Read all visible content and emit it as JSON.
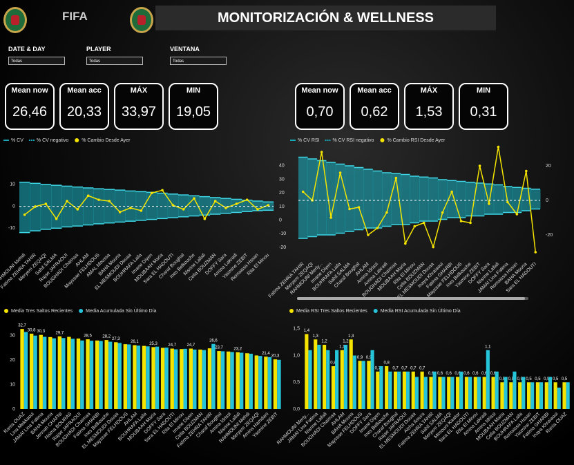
{
  "header": {
    "logo_text": "FIFA",
    "title": "MONITORIZACIÓN & WELLNESS"
  },
  "filters": [
    {
      "label": "DATE & DAY",
      "value": "Todas"
    },
    {
      "label": "PLAYER",
      "value": "Todas"
    },
    {
      "label": "VENTANA",
      "value": "Todas"
    }
  ],
  "kpis": {
    "left": [
      {
        "label": "Mean now",
        "value": "26,46"
      },
      {
        "label": "Mean acc",
        "value": "20,33"
      },
      {
        "label": "MÁX",
        "value": "33,97"
      },
      {
        "label": "MIN",
        "value": "19,05"
      }
    ],
    "right": [
      {
        "label": "Mean now",
        "value": "0,70"
      },
      {
        "label": "Mean acc",
        "value": "0,62"
      },
      {
        "label": "MÁX",
        "value": "1,53"
      },
      {
        "label": "MIN",
        "value": "0,31"
      }
    ]
  },
  "chart_data": [
    {
      "type": "area",
      "categories": [
        "RAHMOUNI Mehdi",
        "Fatima ZEHRA TAHIR",
        "Meryem ZEQAQI",
        "Sahil SALMA",
        "Rajae JAFRAOUI",
        "BOUGHADI Chaimaa",
        "AHLAM",
        "Mayssae FELHDOUS",
        "AMAL Moussa",
        "BAHA Mouna",
        "EL MESMOUDI Douaa",
        "BOUHRAFA Laila",
        "Imane Diyen",
        "MOUBAAH Maria",
        "Sara EL HADOUTI",
        "Charaf Boughal",
        "Ines Belkouche",
        "Nisrine Lallali",
        "Celia BOUZMAN",
        "DOFFY Sara",
        "Amina Lakradi",
        "Yasmine ZEBIT",
        "Romaissa Hssan",
        "Rita El Minou"
      ],
      "series": [
        {
          "name": "% CV",
          "type": "area",
          "color": "#1aa9b8",
          "values": [
            11,
            10.5,
            10,
            9.6,
            9.2,
            8.8,
            8.4,
            8,
            7.7,
            7.4,
            7,
            6.7,
            6.4,
            6,
            5.6,
            5.2,
            4.8,
            4.4,
            4,
            3.6,
            3.2,
            2.8,
            2.4,
            2
          ]
        },
        {
          "name": "% CV negativo",
          "type": "area",
          "color": "#1aa9b8",
          "values": [
            -12,
            -11.2,
            -10.5,
            -10,
            -9.4,
            -9,
            -8.5,
            -8,
            -7.6,
            -7.2,
            -6.8,
            -6.4,
            -6,
            -5.6,
            -5.2,
            -4.8,
            -4.4,
            -4,
            -3.6,
            -3.2,
            -2.8,
            -2.4,
            -2,
            -1.8
          ]
        },
        {
          "name": "% Cambio Desde Ayer",
          "type": "line",
          "axis": "y2",
          "color": "#f5e400",
          "values": [
            4,
            10,
            12,
            1,
            14,
            8,
            18,
            15,
            14,
            6,
            9,
            7,
            20,
            22,
            11,
            8,
            16,
            1,
            14,
            9,
            12,
            15,
            8,
            11
          ]
        }
      ],
      "ylim": [
        -20,
        21
      ],
      "yticks": [
        10,
        0,
        -10
      ],
      "y2lim": [
        -22,
        44
      ],
      "y2ticks": [
        40,
        30,
        20,
        10,
        0,
        -10,
        -20
      ]
    },
    {
      "type": "area",
      "y_axis_position": "right",
      "categories": [
        "Fatima ZEHRA TAHIR",
        "Meryem ZEQAQI",
        "RAHMOUNI Meriy...",
        "Imane Diyen",
        "BOUHRAFA Laila",
        "Sahil SALMA",
        "Charaf Boughal",
        "AHLAM",
        "Amina Idrissi",
        "Amina Lakradi",
        "BOUGHADI Chaimaa",
        "MOUBAAH Maria",
        "Rita El Minou",
        "Celia BOUZMAN",
        "EL MESMOUDI Douaa",
        "Inaya Khraiaoui",
        "Fatima GHARBI",
        "Mayssae FELHDOUS",
        "Ines Belkouche",
        "Yasmine ZEBIT",
        "DOFFY Sara",
        "Nisrine Lallali",
        "JAMAI Lina Fatima",
        "Romaissa Hssan",
        "BAHA Mouna",
        "Sara EL HADOUTI"
      ],
      "series": [
        {
          "name": "% CV RSI",
          "type": "area",
          "color": "#1aa9b8",
          "values": [
            25,
            24,
            23,
            22,
            21,
            20,
            19,
            18,
            17,
            16,
            15.5,
            15,
            14,
            13.5,
            13,
            12,
            11.5,
            11,
            10.5,
            10,
            9.5,
            9,
            8,
            7.5,
            7,
            6.5
          ]
        },
        {
          "name": "% CV RSI negativo",
          "type": "area",
          "color": "#1aa9b8",
          "values": [
            -22,
            -21,
            -20,
            -20,
            -19,
            -18,
            -17,
            -16,
            -16,
            -15,
            -14,
            -14,
            -13,
            -12,
            -12,
            -11,
            -10,
            -10,
            -9,
            -9,
            -8,
            -8,
            -7,
            -7,
            -6,
            -5
          ]
        },
        {
          "name": "% Cambio RSI Desde Ayer",
          "type": "line",
          "color": "#f5e400",
          "values": [
            5,
            0,
            28,
            -10,
            16,
            -5,
            -4,
            -20,
            -16,
            -7,
            13,
            -25,
            -15,
            -13,
            -27,
            -7,
            5,
            -12,
            -13,
            20,
            -2,
            31,
            -1,
            -8,
            17,
            -30
          ]
        }
      ],
      "ylim": [
        -34,
        32
      ],
      "yticks": [
        20,
        0,
        -20
      ]
    },
    {
      "type": "bar",
      "categories": [
        "Rania OUAZ",
        "Lina Mekkaoui",
        "JAMAI Lina Fatima",
        "BAHA Mouna",
        "Jennah CHAFNI",
        "Naima BOURAS",
        "Rajae JAFRAOUI",
        "BOUGHADI Chaimaa",
        "Fatima GHARBI",
        "Ines Belkouche",
        "EL MESMOUDI Douaa",
        "Mayssae FELHDOUS",
        "AHLAM",
        "BOUHRAFA Laila",
        "MOUBAAH Maria",
        "DOFFY Sara",
        "Sara EL HADOUTI",
        "Rita El Minou",
        "Imane Diyen",
        "Celia BOUZMAN",
        "Fatima ZEHRA TAHIR",
        "Charaf Boughal",
        "Amina Idrissi",
        "Nisrine Lallali",
        "RAHMOUNI Mehdi",
        "Meryem ZEQAQI",
        "Amina Hamdani",
        "Yasmine ZEBIT"
      ],
      "series": [
        {
          "name": "Media Tres Saltos Recientes",
          "color": "#f5e400",
          "values": [
            32.7,
            30.8,
            30.3,
            29.4,
            29.7,
            29.5,
            28.8,
            28.5,
            28.0,
            28.2,
            27.3,
            26.5,
            26.1,
            25.8,
            25.3,
            25.0,
            24.7,
            24.5,
            24.7,
            24.3,
            24.8,
            23.7,
            23.5,
            23.2,
            22.8,
            21.9,
            21.4,
            20.3
          ],
          "value_labels": [
            "32,7",
            "30,8",
            "30,3",
            null,
            "29,7",
            null,
            null,
            "28,5",
            null,
            "28,2",
            "27,3",
            null,
            "26,1",
            null,
            "25,3",
            null,
            "24,7",
            null,
            "24,7",
            null,
            null,
            "23,7",
            null,
            "23,2",
            null,
            null,
            "21,4",
            "20,3"
          ]
        },
        {
          "name": "Media Acumulada Sin Último Día",
          "color": "#25c4d8",
          "values": [
            31.5,
            30.0,
            29.5,
            28.9,
            29.0,
            28.7,
            28.0,
            27.9,
            27.8,
            27.5,
            27.0,
            26.4,
            25.9,
            25.6,
            25.5,
            25.1,
            24.4,
            24.6,
            24.3,
            24.1,
            26.6,
            23.6,
            23.3,
            23.0,
            22.6,
            21.7,
            21.2,
            20.1
          ],
          "value_labels": [
            null,
            null,
            null,
            null,
            null,
            null,
            null,
            null,
            null,
            null,
            null,
            null,
            null,
            null,
            null,
            null,
            null,
            null,
            null,
            null,
            "26,6",
            null,
            null,
            null,
            null,
            null,
            null,
            null
          ]
        }
      ],
      "ylim": [
        0,
        35
      ],
      "yticks": [
        0,
        10,
        20,
        30
      ]
    },
    {
      "type": "bar",
      "categories": [
        "RAHMOUNI Meriy...",
        "JAMAI Lina Fatima",
        "Nisrine Lallali",
        "BOUGHADI Chaimaa",
        "AHLAM",
        "BAHA Mouna",
        "Mayssae FELHDOUS",
        "DOFFY Sara",
        "Imane Diyen",
        "Ines Belkouche",
        "Charaf Boughal",
        "Rajae JAFRAOUI",
        "EL MESMOUDI Douaa",
        "Aicha Ikoura",
        "Fatima ZEHRA TAHIR",
        "Sahil SALMA",
        "Meryem ZEQAQI",
        "Mimouni Kawtar",
        "Sara EL HADOUTI",
        "Rita El Minou",
        "Amina Lakradi",
        "Amina Idrissi",
        "MOUBAAH Maria",
        "Celia BOUZMAN",
        "BOUHRAFA Laila",
        "Romaissa Hssan",
        "Yasmine ZEBIT",
        "Fatima GHARBI",
        "Inaya Khraiaoui",
        "Rania OUAZ"
      ],
      "series": [
        {
          "name": "Media RSI Tres Saltos Recientes",
          "color": "#f5e400",
          "values": [
            1.4,
            1.3,
            1.2,
            0.8,
            1.1,
            1.3,
            0.9,
            0.9,
            0.7,
            0.8,
            0.7,
            0.7,
            0.7,
            0.7,
            0.6,
            0.6,
            0.6,
            0.6,
            0.6,
            0.6,
            0.6,
            0.6,
            0.5,
            0.5,
            0.5,
            0.5,
            0.5,
            0.5,
            0.5,
            0.5
          ],
          "value_labels": [
            "1,4",
            "1,3",
            "1,2",
            "0,8",
            "1,1",
            "1,3",
            "0,9",
            "0,9",
            "0,7",
            "0,8",
            "0,7",
            "0,7",
            "0,7",
            "0,7",
            "0,6",
            "0,6",
            "0,6",
            "0,6",
            "0,6",
            "0,6",
            "0,6",
            "0,6",
            "0,5",
            "0,5",
            "0,5",
            "0,5",
            "0,5",
            "0,5",
            "0,5",
            "0,5"
          ]
        },
        {
          "name": "Media RSI Acumulada Sin Último Día",
          "color": "#25c4d8",
          "values": [
            1.1,
            1.2,
            1.1,
            1.1,
            1.2,
            1.0,
            0.9,
            1.1,
            0.8,
            0.7,
            0.7,
            0.7,
            0.6,
            0.6,
            0.7,
            0.6,
            0.6,
            0.7,
            0.6,
            0.6,
            1.1,
            0.7,
            0.6,
            0.7,
            0.6,
            0.5,
            0.5,
            0.6,
            0.4,
            0.5
          ],
          "value_labels": [
            null,
            null,
            null,
            null,
            "1,2",
            null,
            null,
            null,
            null,
            null,
            null,
            null,
            null,
            null,
            null,
            null,
            null,
            null,
            null,
            null,
            "1,1",
            null,
            null,
            null,
            null,
            null,
            null,
            null,
            null,
            null
          ]
        }
      ],
      "ylim": [
        0,
        1.6
      ],
      "yticks": [
        {
          "value": 0,
          "label": "0,0"
        },
        {
          "value": 0.5,
          "label": "0,5"
        },
        {
          "value": 1,
          "label": "1,0"
        },
        {
          "value": 1.5,
          "label": "1,5"
        }
      ]
    }
  ]
}
